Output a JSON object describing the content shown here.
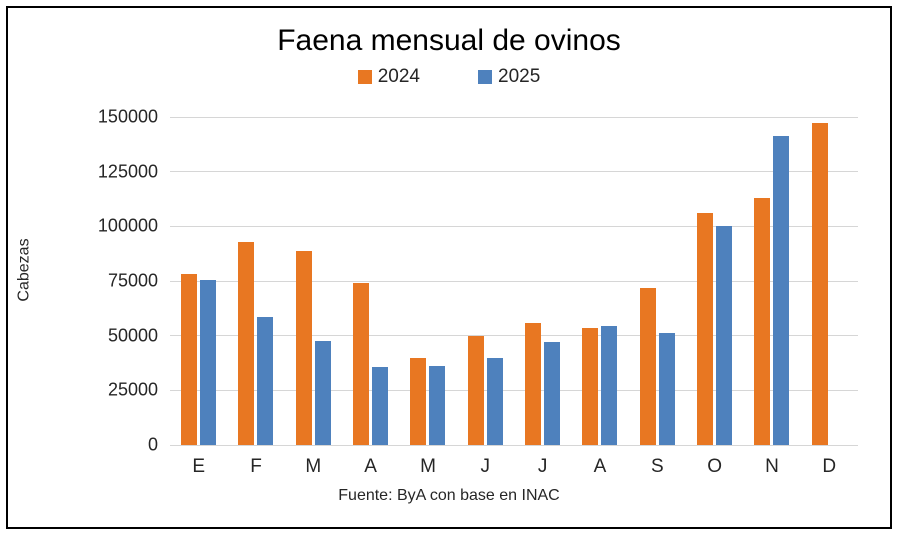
{
  "title": "Faena mensual de ovinos",
  "ylabel": "Cabezas",
  "source": "Fuente: ByA con base en INAC",
  "colors": {
    "series_2024": "#e87722",
    "series_2025": "#4e81bd",
    "gridline": "#d6d6d6",
    "text": "#262626"
  },
  "legend": {
    "position": "top",
    "items": [
      {
        "label": "2024",
        "color": "#e87722"
      },
      {
        "label": "2025",
        "color": "#4e81bd"
      }
    ]
  },
  "chart_data": {
    "type": "bar",
    "title": "Faena mensual de ovinos",
    "categories": [
      "E",
      "F",
      "M",
      "A",
      "M",
      "J",
      "J",
      "A",
      "S",
      "O",
      "N",
      "D"
    ],
    "series": [
      {
        "name": "2024",
        "color": "#e87722",
        "values": [
          78000,
          93000,
          88800,
          74000,
          40000,
          50000,
          55700,
          53400,
          71600,
          106200,
          113000,
          147300
        ]
      },
      {
        "name": "2025",
        "color": "#4e81bd",
        "values": [
          75500,
          58500,
          47500,
          35500,
          36300,
          40000,
          47200,
          54500,
          51200,
          100300,
          141300,
          null
        ]
      }
    ],
    "xlabel": "",
    "ylabel": "Cabezas",
    "ylim": [
      0,
      150000
    ],
    "ytick_step": 25000,
    "yticks": [
      0,
      25000,
      50000,
      75000,
      100000,
      125000,
      150000
    ],
    "grid": true,
    "legend_position": "top",
    "source": "Fuente: ByA con base en INAC"
  }
}
